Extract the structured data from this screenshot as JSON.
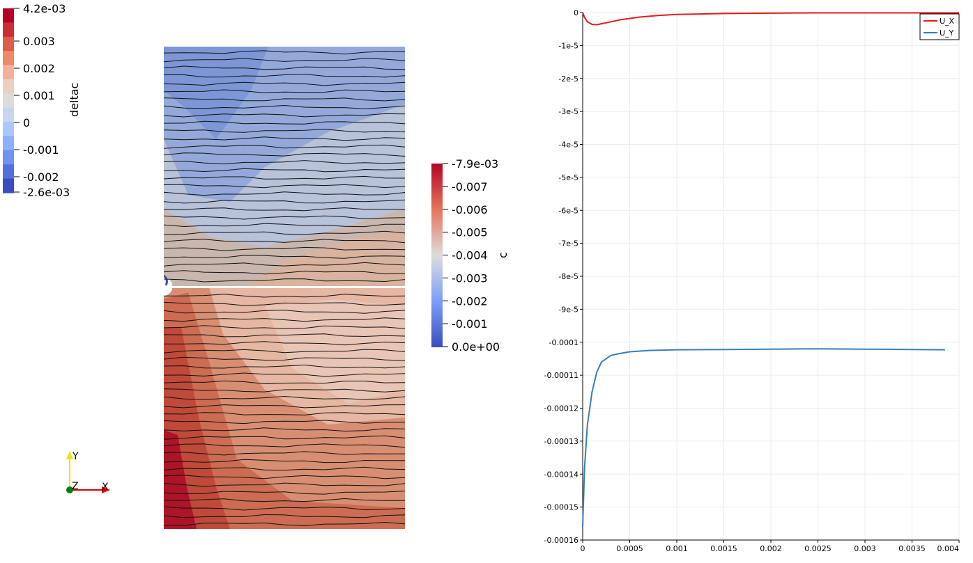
{
  "scalar_bar_deltac": {
    "title": "deltac",
    "labels": [
      "4.2e-03",
      "0.003",
      "0.002",
      "0.001",
      "0",
      "-0.001",
      "-0.002",
      "-2.6e-03"
    ],
    "colors": [
      "#b40426",
      "#cc2e33",
      "#dc5d4a",
      "#ec8a6a",
      "#f4b197",
      "#edd0c0",
      "#dddcdc",
      "#c7d6f0",
      "#aac7fd",
      "#8db0fe",
      "#6f92f3",
      "#5470de",
      "#3b4cc0"
    ]
  },
  "scalar_bar_c": {
    "title": "c",
    "labels": [
      "-7.9e-03",
      "-0.007",
      "-0.006",
      "-0.005",
      "-0.004",
      "-0.003",
      "-0.002",
      "-0.001",
      "0.0e+00"
    ],
    "colors": [
      "#b40426",
      "#f7f7f7",
      "#3b4cc0"
    ]
  },
  "orientation_axes": {
    "x": "X",
    "y": "Y",
    "z": "Z"
  },
  "chart_data": {
    "type": "line",
    "xlim": [
      0,
      0.004
    ],
    "ylim": [
      -0.00016,
      0
    ],
    "x_ticks": [
      "0",
      "0.0005",
      "0.001",
      "0.0015",
      "0.002",
      "0.0025",
      "0.003",
      "0.0035",
      "0.004"
    ],
    "y_ticks": [
      "0",
      "-1e-5",
      "-2e-5",
      "-3e-5",
      "-4e-5",
      "-5e-5",
      "-6e-5",
      "-7e-5",
      "-8e-5",
      "-9e-5",
      "-0.0001",
      "-0.00011",
      "-0.00012",
      "-0.00013",
      "-0.00014",
      "-0.00015",
      "-0.00016"
    ],
    "grid": true,
    "legend_position": "top-right",
    "series": [
      {
        "name": "U_X",
        "color": "#e41a1c",
        "x": [
          0,
          2e-05,
          5e-05,
          0.0001,
          0.00015,
          0.0002,
          0.0003,
          0.0004,
          0.0006,
          0.0008,
          0.001,
          0.0015,
          0.002,
          0.0025,
          0.003,
          0.0035,
          0.004
        ],
        "y": [
          0,
          -1.5e-06,
          -2.8e-06,
          -3.6e-06,
          -3.7e-06,
          -3.4e-06,
          -2.8e-06,
          -2.2e-06,
          -1.4e-06,
          -9e-07,
          -6e-07,
          -3e-07,
          -2e-07,
          -1e-07,
          -1e-07,
          -1e-07,
          -1e-07
        ]
      },
      {
        "name": "U_Y",
        "color": "#377eb8",
        "x": [
          0,
          2e-05,
          5e-05,
          0.0001,
          0.00015,
          0.0002,
          0.0003,
          0.0004,
          0.0005,
          0.0007,
          0.001,
          0.0015,
          0.002,
          0.0025,
          0.003,
          0.0035,
          0.00385
        ],
        "y": [
          -0.000156,
          -0.000138,
          -0.000125,
          -0.000115,
          -0.000109,
          -0.000106,
          -0.000104,
          -0.0001034,
          -0.0001029,
          -0.0001025,
          -0.0001023,
          -0.0001022,
          -0.0001021,
          -0.000102,
          -0.0001021,
          -0.0001022,
          -0.0001023
        ]
      }
    ]
  }
}
